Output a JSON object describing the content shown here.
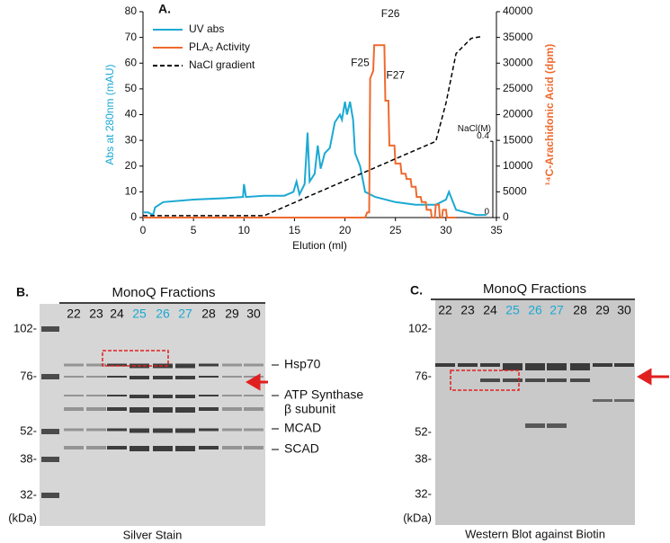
{
  "panel_a": {
    "label": "A.",
    "chart_data": {
      "type": "line",
      "x_label": "Elution (ml)",
      "y_label": "Abs at 280nm (mAU)",
      "y2_label": "¹⁴C-Arachidonic Acid (dpm)",
      "xlim": [
        0,
        35
      ],
      "xticks": [
        0,
        5,
        10,
        15,
        20,
        25,
        30,
        35
      ],
      "ylim": [
        0,
        80
      ],
      "yticks": [
        0,
        10,
        20,
        30,
        40,
        50,
        60,
        70,
        80
      ],
      "y2lim": [
        0,
        40000
      ],
      "y2ticks": [
        0,
        5000,
        10000,
        15000,
        20000,
        25000,
        30000,
        35000,
        40000
      ],
      "y3_label": "NaCl(M)",
      "y3lim": [
        0,
        1.08
      ],
      "y3ticks": [
        0,
        0.4
      ],
      "legend": "top-left",
      "series": [
        {
          "name": "UV abs",
          "color": "#1ba9d3",
          "axis": "y",
          "dash": false,
          "x": [
            0,
            0.5,
            1,
            1.2,
            2,
            5,
            8,
            9.9,
            10,
            10.2,
            12,
            14,
            14.9,
            15.2,
            15.5,
            16,
            16.3,
            16.5,
            17,
            17.3,
            17.6,
            18,
            18.5,
            19,
            19.5,
            19.7,
            20,
            20.2,
            20.5,
            20.8,
            21,
            21.5,
            22,
            23,
            25,
            27,
            29,
            30,
            30.3,
            30.6,
            31,
            32,
            33,
            34
          ],
          "values": [
            2,
            2,
            1,
            4,
            6,
            7,
            7.5,
            8,
            13,
            8,
            8.5,
            8.5,
            10,
            14,
            9,
            13,
            33,
            14,
            17,
            28,
            19,
            25,
            27,
            37,
            40,
            38,
            45,
            40,
            45,
            38,
            25,
            20,
            10,
            8,
            6,
            5,
            5,
            7,
            10,
            7,
            3,
            2,
            1,
            1
          ]
        },
        {
          "name": "PLA₂ Activity",
          "color": "#ee6a2e",
          "axis": "y2",
          "dash": false,
          "x": [
            0,
            22,
            22.2,
            22.4,
            22.5,
            22.8,
            22.9,
            23.9,
            24.0,
            24.3,
            24.4,
            24.9,
            25.0,
            25.5,
            25.6,
            26,
            26.1,
            26.5,
            26.6,
            27,
            27.1,
            27.5,
            27.6,
            28,
            28.1,
            28.5,
            28.6,
            28.9,
            29,
            29.3,
            29.4,
            29.6,
            29.7,
            30,
            30.1,
            31
          ],
          "values": [
            0,
            0,
            1000,
            1000,
            27000,
            28500,
            33500,
            33500,
            22700,
            22700,
            14000,
            14000,
            10500,
            10500,
            8500,
            8500,
            7500,
            7500,
            6000,
            6000,
            4000,
            4000,
            3000,
            3000,
            1500,
            1500,
            0,
            0,
            2500,
            2500,
            0,
            0,
            1500,
            1500,
            0,
            0
          ]
        },
        {
          "name": "NaCl gradient",
          "color": "#000000",
          "axis": "y3",
          "dash": true,
          "x": [
            0,
            1,
            12,
            29,
            30,
            31,
            32.5,
            33.5
          ],
          "values": [
            0.01,
            0.01,
            0.01,
            0.4,
            0.6,
            0.86,
            0.94,
            0.95
          ]
        }
      ],
      "annotations": [
        {
          "text": "F25",
          "x": 21.5,
          "y2": 30000
        },
        {
          "text": "F26",
          "x": 24.5,
          "y2": 39500
        },
        {
          "text": "F27",
          "x": 25,
          "y2": 27500
        }
      ]
    }
  },
  "panel_b": {
    "label": "B.",
    "header": "MonoQ Fractions",
    "lanes": [
      "22",
      "23",
      "24",
      "25",
      "26",
      "27",
      "28",
      "29",
      "30"
    ],
    "lane_colors": [
      "#111",
      "#111",
      "#111",
      "#1ba9d3",
      "#1ba9d3",
      "#1ba9d3",
      "#111",
      "#111",
      "#111"
    ],
    "markers": [
      "102-",
      "76-",
      "52-",
      "38-",
      "32-",
      "(kDa)"
    ],
    "band_labels": [
      "Hsp70",
      "ATP Synthase",
      "β subunit",
      "MCAD",
      "SCAD"
    ],
    "caption": "Silver Stain"
  },
  "panel_c": {
    "label": "C.",
    "header": "MonoQ Fractions",
    "lanes": [
      "22",
      "23",
      "24",
      "25",
      "26",
      "27",
      "28",
      "29",
      "30"
    ],
    "lane_colors": [
      "#111",
      "#111",
      "#111",
      "#1ba9d3",
      "#1ba9d3",
      "#1ba9d3",
      "#111",
      "#111",
      "#111"
    ],
    "markers": [
      "102-",
      "76-",
      "52-",
      "38-",
      "32-",
      "(kDa)"
    ],
    "caption": "Western Blot against Biotin"
  }
}
